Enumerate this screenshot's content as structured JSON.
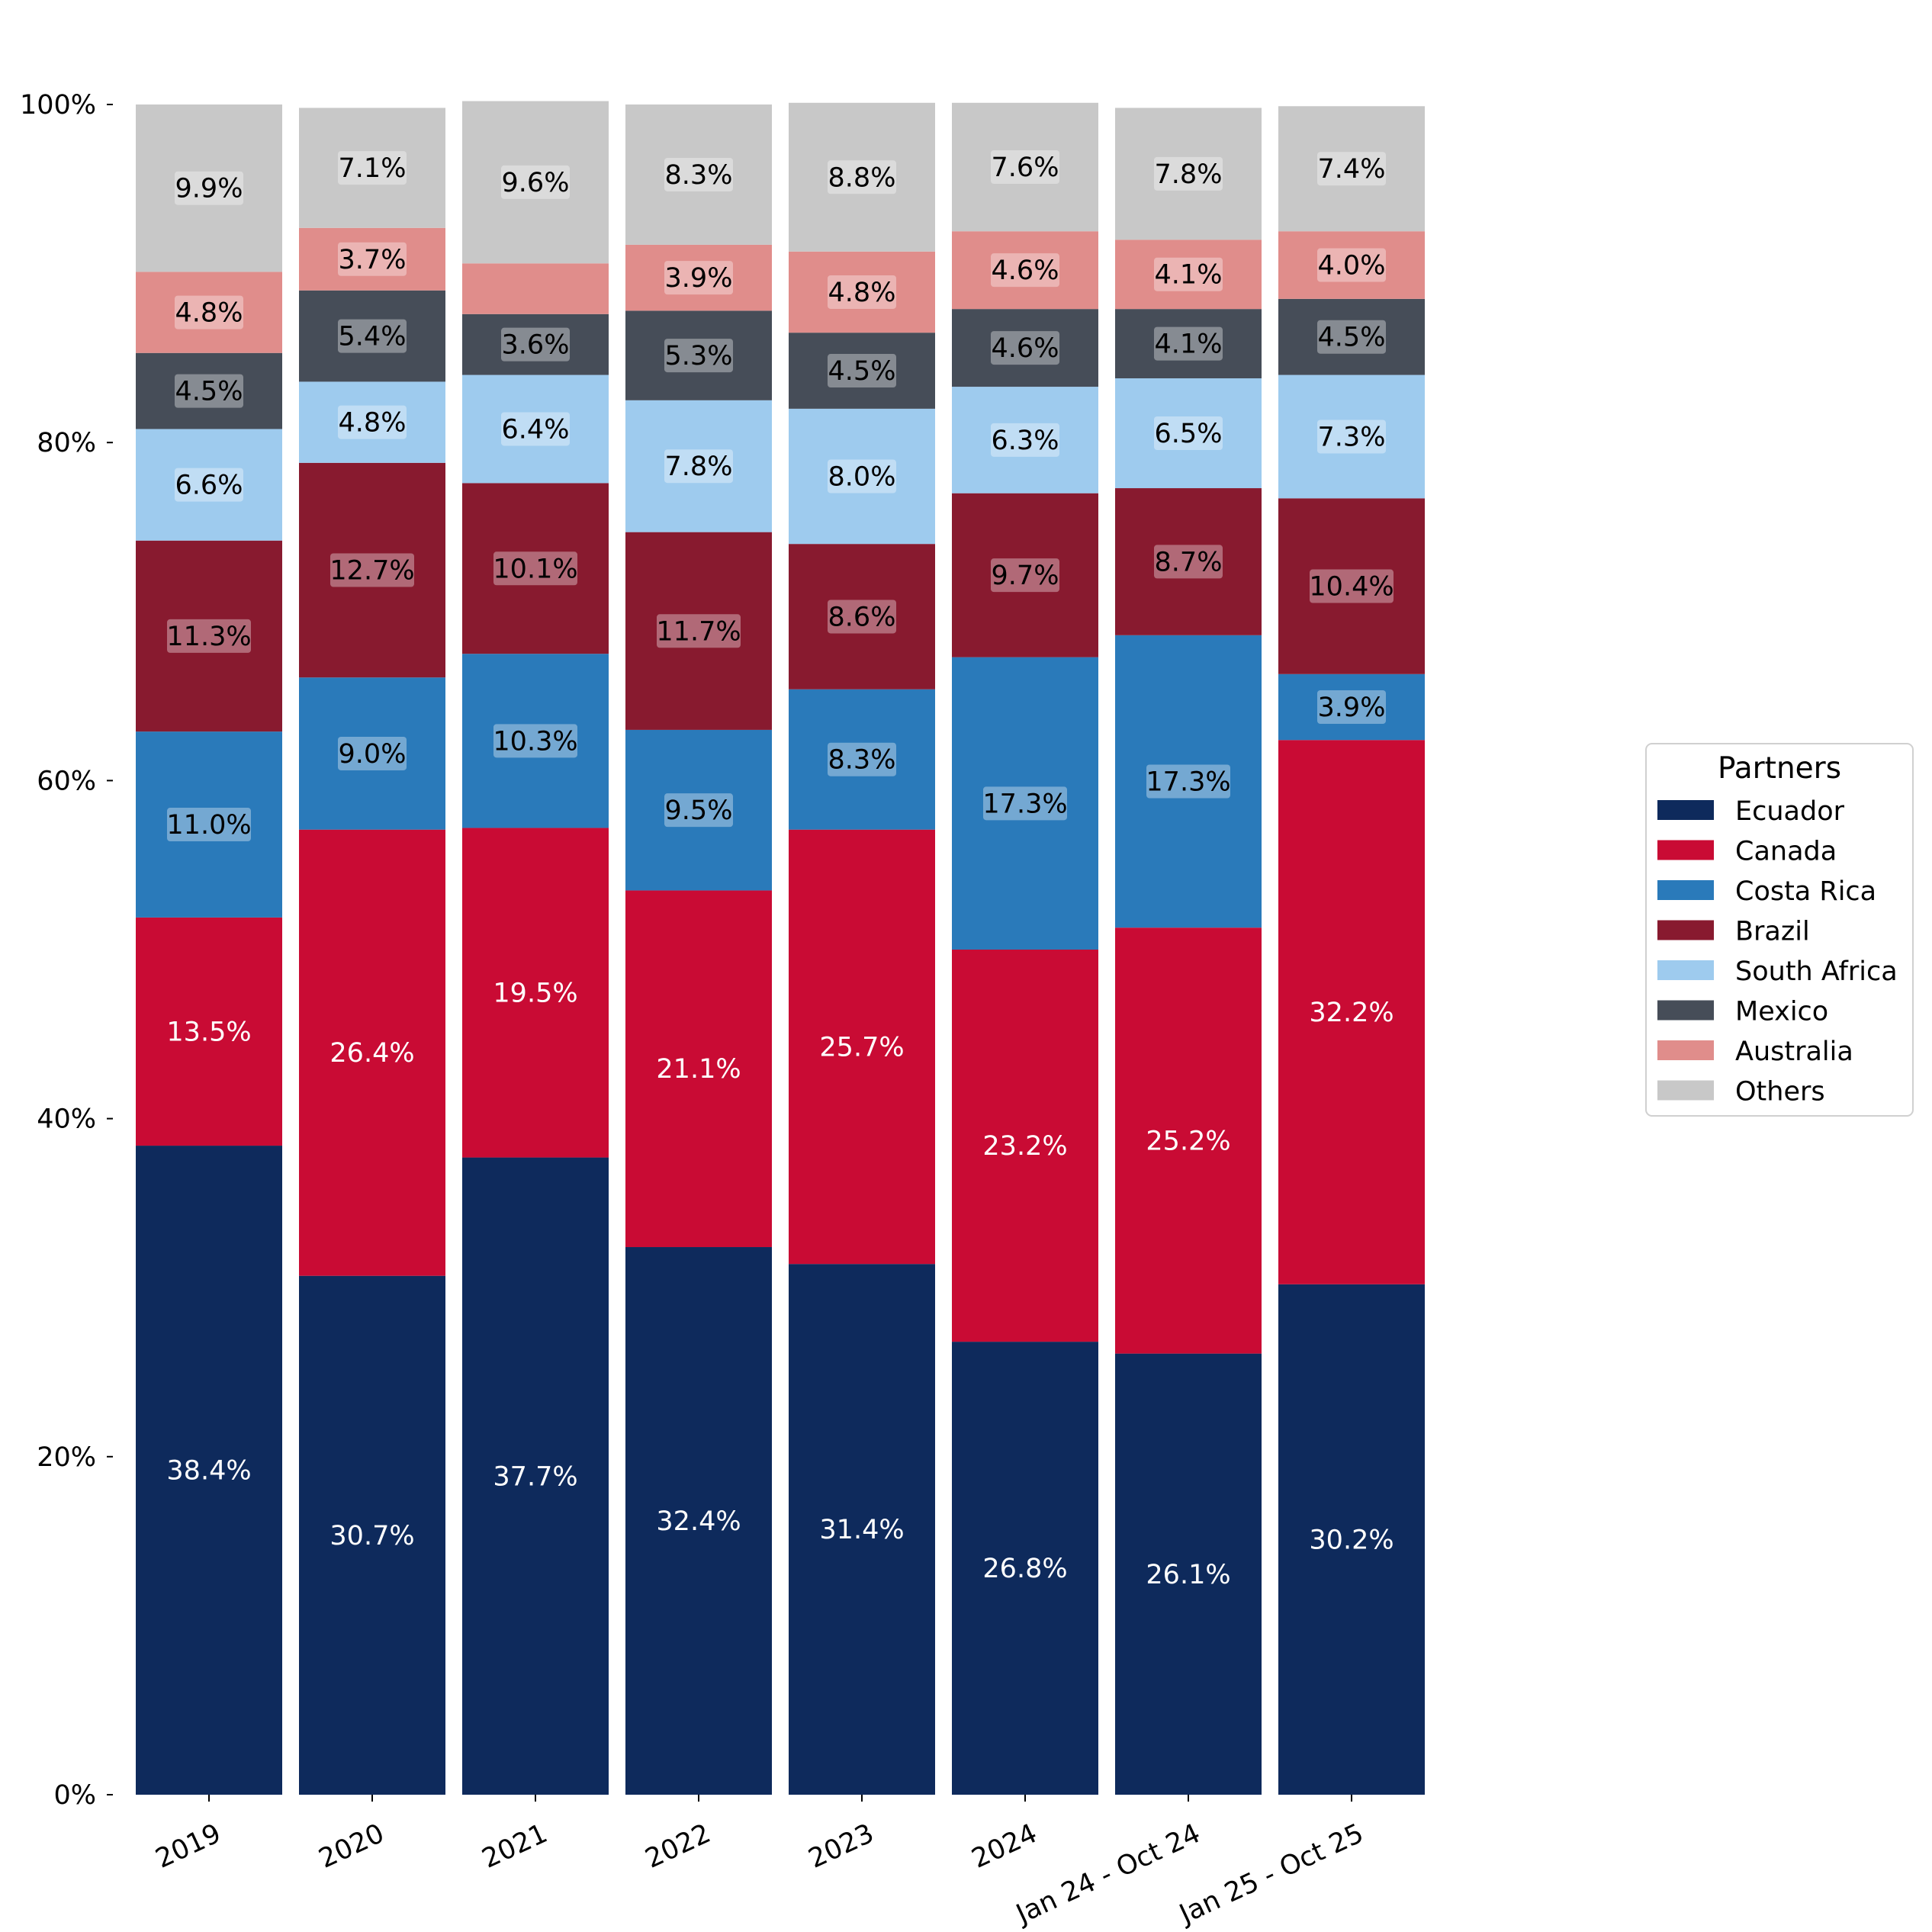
{
  "chart_data": {
    "type": "bar",
    "stacked": true,
    "percent": true,
    "categories": [
      "2019",
      "2020",
      "2021",
      "2022",
      "2023",
      "2024",
      "Jan 24 - Oct 24",
      "Jan 25 - Oct 25"
    ],
    "ylim": [
      0,
      100
    ],
    "yticks": [
      0,
      20,
      40,
      60,
      80,
      100
    ],
    "ytick_labels": [
      "0%",
      "20%",
      "40%",
      "60%",
      "80%",
      "100%"
    ],
    "xlabel": "",
    "ylabel": "",
    "title": "",
    "grid": false,
    "legend": {
      "title": "Partners",
      "placement": "right"
    },
    "series": [
      {
        "name": "Ecuador",
        "color": "#0e2a5c",
        "label_color": "#ffffff",
        "label_box": false,
        "values": [
          38.4,
          30.7,
          37.7,
          32.4,
          31.4,
          26.8,
          26.1,
          30.2
        ],
        "labels": [
          "38.4%",
          "30.7%",
          "37.7%",
          "32.4%",
          "31.4%",
          "26.8%",
          "26.1%",
          "30.2%"
        ]
      },
      {
        "name": "Canada",
        "color": "#c90b34",
        "label_color": "#ffffff",
        "label_box": false,
        "values": [
          13.5,
          26.4,
          19.5,
          21.1,
          25.7,
          23.2,
          25.2,
          32.2
        ],
        "labels": [
          "13.5%",
          "26.4%",
          "19.5%",
          "21.1%",
          "25.7%",
          "23.2%",
          "25.2%",
          "32.2%"
        ]
      },
      {
        "name": "Costa Rica",
        "color": "#2a7aba",
        "label_color": "#000000",
        "label_box": true,
        "values": [
          11.0,
          9.0,
          10.3,
          9.5,
          8.3,
          17.3,
          17.3,
          3.9
        ],
        "labels": [
          "11.0%",
          "9.0%",
          "10.3%",
          "9.5%",
          "8.3%",
          "17.3%",
          "17.3%",
          "3.9%"
        ]
      },
      {
        "name": "Brazil",
        "color": "#881a2f",
        "label_color": "#000000",
        "label_box": true,
        "values": [
          11.3,
          12.7,
          10.1,
          11.7,
          8.6,
          9.7,
          8.7,
          10.4
        ],
        "labels": [
          "11.3%",
          "12.7%",
          "10.1%",
          "11.7%",
          "8.6%",
          "9.7%",
          "8.7%",
          "10.4%"
        ]
      },
      {
        "name": "South Africa",
        "color": "#9ecbee",
        "label_color": "#000000",
        "label_box": true,
        "values": [
          6.6,
          4.8,
          6.4,
          7.8,
          8.0,
          6.3,
          6.5,
          7.3
        ],
        "labels": [
          "6.6%",
          "4.8%",
          "6.4%",
          "7.8%",
          "8.0%",
          "6.3%",
          "6.5%",
          "7.3%"
        ]
      },
      {
        "name": "Mexico",
        "color": "#464d58",
        "label_color": "#000000",
        "label_box": true,
        "values": [
          4.5,
          5.4,
          3.6,
          5.3,
          4.5,
          4.6,
          4.1,
          4.5
        ],
        "labels": [
          "4.5%",
          "5.4%",
          "3.6%",
          "5.3%",
          "4.5%",
          "4.6%",
          "4.1%",
          "4.5%"
        ]
      },
      {
        "name": "Australia",
        "color": "#e08d8b",
        "label_color": "#000000",
        "label_box": true,
        "values": [
          4.8,
          3.7,
          3.0,
          3.9,
          4.8,
          4.6,
          4.1,
          4.0
        ],
        "labels": [
          "4.8%",
          "3.7%",
          "",
          "3.9%",
          "4.8%",
          "4.6%",
          "4.1%",
          "4.0%"
        ]
      },
      {
        "name": "Others",
        "color": "#c8c8c8",
        "label_color": "#000000",
        "label_box": true,
        "values": [
          9.9,
          7.1,
          9.6,
          8.3,
          8.8,
          7.6,
          7.8,
          7.4
        ],
        "labels": [
          "9.9%",
          "7.1%",
          "9.6%",
          "8.3%",
          "8.8%",
          "7.6%",
          "7.8%",
          "7.4%"
        ]
      }
    ]
  }
}
